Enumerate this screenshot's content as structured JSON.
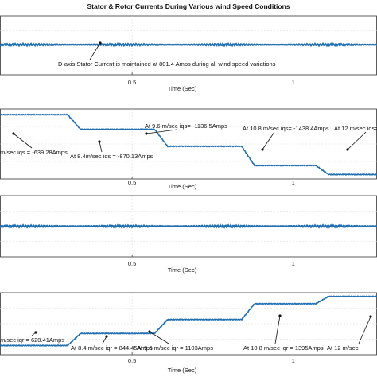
{
  "figure": {
    "title": "Stator & Rotor Currents During Various wind Speed Conditions"
  },
  "chart_data": [
    {
      "type": "line",
      "title": "",
      "xlabel": "Time (Sec)",
      "xticks": [
        "0.5",
        "1"
      ],
      "xlim": [
        0.09,
        1.26
      ],
      "ylim": [
        740,
        860
      ],
      "grid": true,
      "series": [
        {
          "x": [
            0.09,
            0.5,
            0.75,
            1.0,
            1.26
          ],
          "values": [
            801.4,
            801.4,
            801.4,
            801.4,
            801.4
          ],
          "oscillation": 4
        }
      ],
      "annotations": [
        {
          "text": "D-axis Stator Current is maintained at 801.4 Amps during all wind speed variations",
          "x": 0.155,
          "y": 801.4
        }
      ]
    },
    {
      "type": "line",
      "title": "",
      "xlabel": "Time (Sec)",
      "xticks": [
        "0.5",
        "1"
      ],
      "xlim": [
        0.09,
        1.26
      ],
      "ylim": [
        -1650,
        -550
      ],
      "grid": true,
      "series": [
        {
          "x": [
            0.09,
            0.3,
            0.34,
            0.57,
            0.61,
            0.84,
            0.88,
            1.07,
            1.11,
            1.26
          ],
          "values": [
            -639.28,
            -639.28,
            -870.13,
            -870.13,
            -1136.5,
            -1136.5,
            -1438.4,
            -1438.4,
            -1580,
            -1580
          ],
          "oscillation": 0
        }
      ],
      "annotations": [
        {
          "text": "At 9.6 m/sec iqs= -1136.5Amps",
          "x": 0.6,
          "y": -1136.5
        },
        {
          "text": "At 10.8 m/sec iqs= -1438.4Amps",
          "x": 0.9,
          "y": -1438.4
        },
        {
          "text": "At 12 m/sec iqs=",
          "x": 1.15,
          "y": -1580
        },
        {
          "text": "m/sec iqs = -639.28Amps",
          "x": 0.11,
          "y": -639.28
        },
        {
          "text": "At 8.4m/sec iqs = -870.13Amps",
          "x": 0.37,
          "y": -870.13
        }
      ]
    },
    {
      "type": "line",
      "title": "",
      "xlabel": "Time (Sec)",
      "xticks": [
        "0.5",
        "1"
      ],
      "xlim": [
        0.09,
        1.26
      ],
      "ylim": [
        -60,
        60
      ],
      "grid": true,
      "series": [
        {
          "x": [
            0.09,
            0.5,
            0.75,
            1.0,
            1.26
          ],
          "values": [
            0,
            0,
            0,
            0,
            0
          ],
          "oscillation": 4
        }
      ],
      "annotations": []
    },
    {
      "type": "line",
      "title": "",
      "xlabel": "Time (Sec)",
      "xticks": [
        "0.5",
        "1"
      ],
      "xlim": [
        0.09,
        1.26
      ],
      "ylim": [
        450,
        1600
      ],
      "grid": true,
      "series": [
        {
          "x": [
            0.09,
            0.3,
            0.34,
            0.57,
            0.61,
            0.84,
            0.88,
            1.07,
            1.11,
            1.26
          ],
          "values": [
            620.41,
            620.41,
            844.45,
            844.45,
            1103,
            1103,
            1395,
            1395,
            1530,
            1530
          ],
          "oscillation": 0
        }
      ],
      "annotations": [
        {
          "text": "m/sec iqr = 620.41Amps",
          "x": 0.11,
          "y": 620.41
        },
        {
          "text": "At 8.4 m/sec iqr = 844.45Amps",
          "x": 0.4,
          "y": 844.45
        },
        {
          "text": "At 9.6 m/sec iqr = 1103Amps",
          "x": 0.65,
          "y": 1103
        },
        {
          "text": "At 10.8 m/sec iqr = 1395Amps",
          "x": 0.93,
          "y": 1395
        },
        {
          "text": "At 12 m/sec",
          "x": 1.16,
          "y": 1530
        }
      ]
    }
  ]
}
